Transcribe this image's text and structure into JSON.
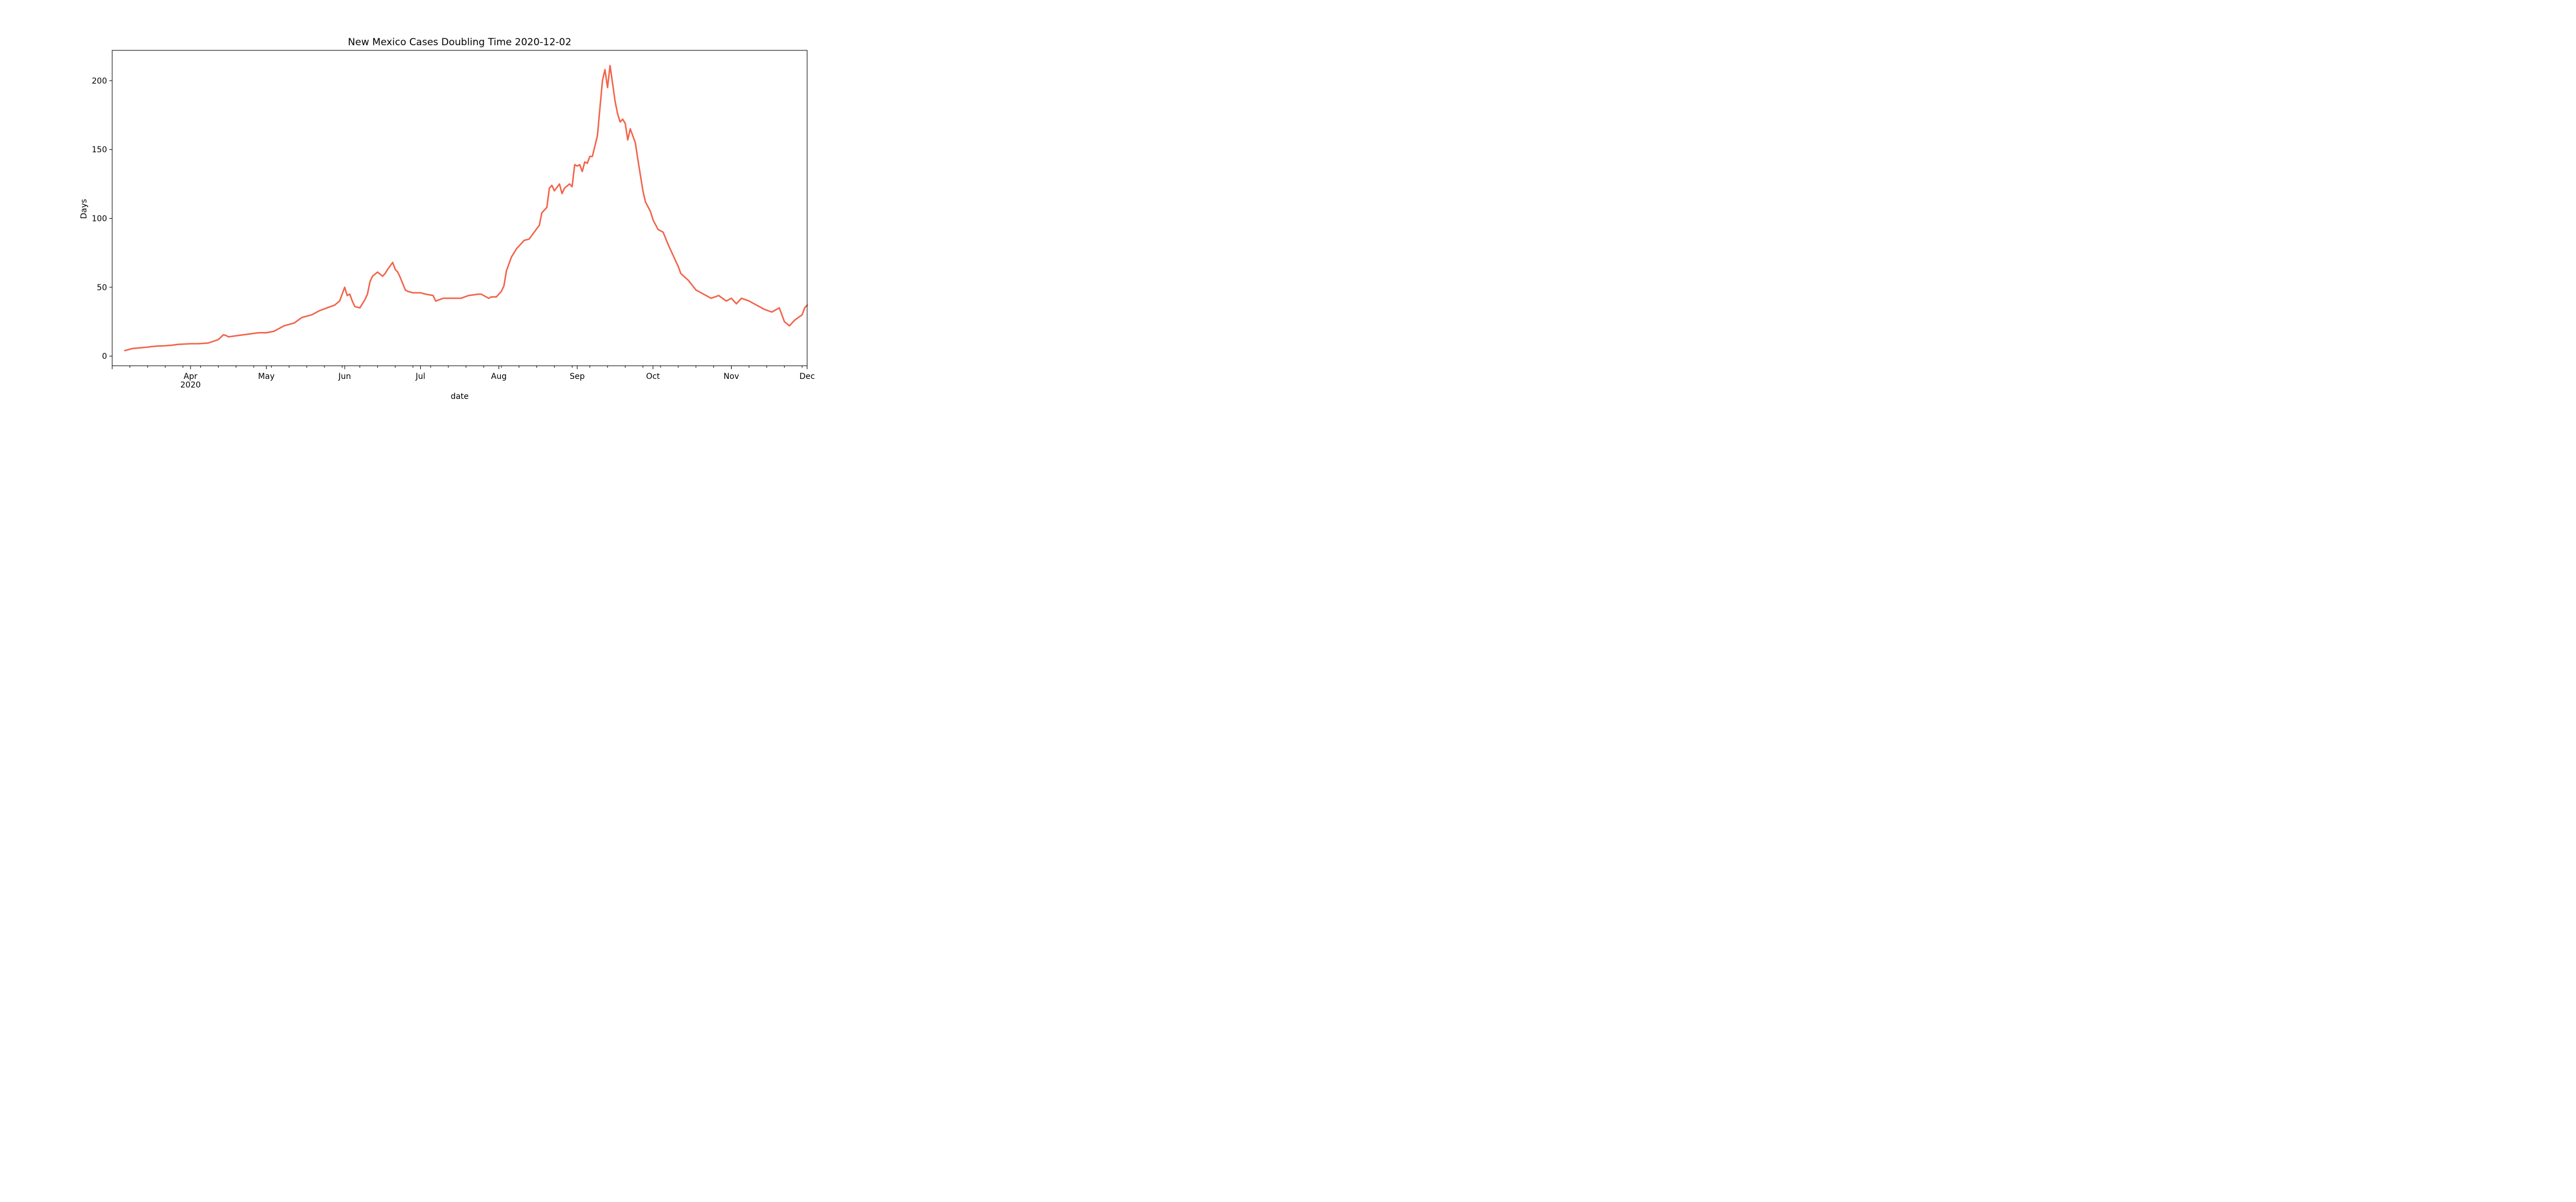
{
  "chart_data": {
    "type": "line",
    "title": "New Mexico Cases Doubling Time 2020-12-02",
    "xlabel": "date",
    "ylabel": "Days",
    "xlim": [
      "2020-03-01",
      "2020-12-01"
    ],
    "ylim": [
      -7,
      222
    ],
    "grid": false,
    "legend": "none",
    "line_color": "#f2634a",
    "y_ticks": [
      0,
      50,
      100,
      150,
      200
    ],
    "x_major_ticks": [
      {
        "date": "2020-04-01",
        "label": "Apr",
        "sublabel": "2020"
      },
      {
        "date": "2020-05-01",
        "label": "May",
        "sublabel": ""
      },
      {
        "date": "2020-06-01",
        "label": "Jun",
        "sublabel": ""
      },
      {
        "date": "2020-07-01",
        "label": "Jul",
        "sublabel": ""
      },
      {
        "date": "2020-08-01",
        "label": "Aug",
        "sublabel": ""
      },
      {
        "date": "2020-09-01",
        "label": "Sep",
        "sublabel": ""
      },
      {
        "date": "2020-10-01",
        "label": "Oct",
        "sublabel": ""
      },
      {
        "date": "2020-11-01",
        "label": "Nov",
        "sublabel": ""
      },
      {
        "date": "2020-12-01",
        "label": "Dec",
        "sublabel": ""
      }
    ],
    "series": [
      {
        "x": [
          "2020-03-06",
          "2020-03-08",
          "2020-03-09",
          "2020-03-12",
          "2020-03-15",
          "2020-03-17",
          "2020-03-19",
          "2020-03-22",
          "2020-03-25",
          "2020-03-27",
          "2020-04-01",
          "2020-04-04",
          "2020-04-08",
          "2020-04-12",
          "2020-04-14",
          "2020-04-15",
          "2020-04-16",
          "2020-04-20",
          "2020-04-24",
          "2020-04-28",
          "2020-05-01",
          "2020-05-04",
          "2020-05-06",
          "2020-05-08",
          "2020-05-12",
          "2020-05-15",
          "2020-05-19",
          "2020-05-22",
          "2020-05-25",
          "2020-05-28",
          "2020-05-30",
          "2020-06-01",
          "2020-06-02",
          "2020-06-03",
          "2020-06-04",
          "2020-06-05",
          "2020-06-07",
          "2020-06-09",
          "2020-06-10",
          "2020-06-11",
          "2020-06-12",
          "2020-06-14",
          "2020-06-16",
          "2020-06-17",
          "2020-06-18",
          "2020-06-20",
          "2020-06-21",
          "2020-06-22",
          "2020-06-23",
          "2020-06-25",
          "2020-06-26",
          "2020-06-28",
          "2020-07-01",
          "2020-07-03",
          "2020-07-06",
          "2020-07-07",
          "2020-07-10",
          "2020-07-13",
          "2020-07-17",
          "2020-07-20",
          "2020-07-24",
          "2020-07-25",
          "2020-07-28",
          "2020-07-29",
          "2020-07-31",
          "2020-08-01",
          "2020-08-02",
          "2020-08-03",
          "2020-08-04",
          "2020-08-06",
          "2020-08-08",
          "2020-08-10",
          "2020-08-11",
          "2020-08-13",
          "2020-08-15",
          "2020-08-17",
          "2020-08-18",
          "2020-08-20",
          "2020-08-21",
          "2020-08-22",
          "2020-08-23",
          "2020-08-25",
          "2020-08-26",
          "2020-08-27",
          "2020-08-29",
          "2020-08-30",
          "2020-08-31",
          "2020-09-01",
          "2020-09-02",
          "2020-09-03",
          "2020-09-04",
          "2020-09-05",
          "2020-09-06",
          "2020-09-07",
          "2020-09-09",
          "2020-09-10",
          "2020-09-11",
          "2020-09-12",
          "2020-09-13",
          "2020-09-14",
          "2020-09-15",
          "2020-09-16",
          "2020-09-17",
          "2020-09-18",
          "2020-09-19",
          "2020-09-20",
          "2020-09-21",
          "2020-09-22",
          "2020-09-23",
          "2020-09-24",
          "2020-09-25",
          "2020-09-27",
          "2020-09-28",
          "2020-09-30",
          "2020-10-01",
          "2020-10-03",
          "2020-10-05",
          "2020-10-07",
          "2020-10-09",
          "2020-10-11",
          "2020-10-12",
          "2020-10-15",
          "2020-10-18",
          "2020-10-21",
          "2020-10-24",
          "2020-10-27",
          "2020-10-30",
          "2020-11-01",
          "2020-11-03",
          "2020-11-05",
          "2020-11-08",
          "2020-11-11",
          "2020-11-14",
          "2020-11-17",
          "2020-11-20",
          "2020-11-22",
          "2020-11-24",
          "2020-11-26",
          "2020-11-29",
          "2020-11-30",
          "2020-12-01"
        ],
        "y": [
          4,
          5,
          5.5,
          6,
          6.5,
          7,
          7.3,
          7.5,
          8,
          8.5,
          9,
          9,
          9.5,
          12,
          15.5,
          15,
          14,
          15,
          16,
          17,
          17,
          18,
          20,
          22,
          24,
          28,
          30,
          33,
          35,
          37,
          40,
          50,
          44,
          45,
          40,
          36,
          35,
          41,
          45,
          54,
          58,
          61,
          58,
          60,
          63,
          68,
          63,
          61,
          57,
          48,
          47,
          46,
          46,
          45,
          44,
          40,
          42,
          42,
          42,
          44,
          45,
          45,
          42,
          43,
          43,
          45,
          47,
          51,
          62,
          72,
          78,
          82,
          84,
          85,
          90,
          95,
          104,
          108,
          122,
          124,
          120,
          125,
          118,
          122,
          125,
          123,
          139,
          138,
          139,
          134,
          141,
          140,
          145,
          145,
          160,
          180,
          200,
          208,
          195,
          211,
          198,
          185,
          176,
          170,
          172,
          169,
          157,
          165,
          160,
          155,
          143,
          120,
          112,
          105,
          99,
          92,
          90,
          81,
          73,
          65,
          60,
          55,
          48,
          45,
          42,
          44,
          40,
          42,
          38,
          42,
          40,
          37,
          34,
          32,
          35,
          25,
          22,
          26,
          30,
          35,
          37
        ]
      }
    ]
  }
}
